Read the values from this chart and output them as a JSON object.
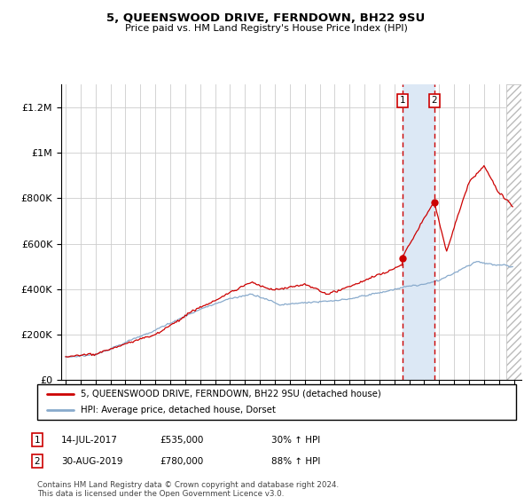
{
  "title": "5, QUEENSWOOD DRIVE, FERNDOWN, BH22 9SU",
  "subtitle": "Price paid vs. HM Land Registry's House Price Index (HPI)",
  "background_color": "#ffffff",
  "grid_color": "#cccccc",
  "sale1_date": 2017.54,
  "sale1_price": 535000,
  "sale2_date": 2019.66,
  "sale2_price": 780000,
  "legend_entries": [
    "5, QUEENSWOOD DRIVE, FERNDOWN, BH22 9SU (detached house)",
    "HPI: Average price, detached house, Dorset"
  ],
  "legend_line_colors": [
    "#cc0000",
    "#88aacc"
  ],
  "footer": "Contains HM Land Registry data © Crown copyright and database right 2024.\nThis data is licensed under the Open Government Licence v3.0.",
  "ylim": [
    0,
    1300000
  ],
  "xlim_start": 1994.7,
  "xlim_end": 2025.5,
  "hpi_color": "#88aacc",
  "property_color": "#cc0000",
  "shaded_region_color": "#dce8f5",
  "vline_color": "#cc0000",
  "marker_color": "#cc0000",
  "hatch_start": 2024.5
}
